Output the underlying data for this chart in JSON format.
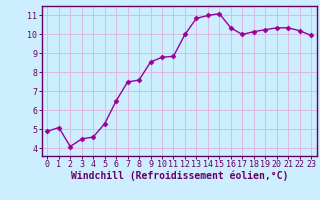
{
  "x": [
    0,
    1,
    2,
    3,
    4,
    5,
    6,
    7,
    8,
    9,
    10,
    11,
    12,
    13,
    14,
    15,
    16,
    17,
    18,
    19,
    20,
    21,
    22,
    23
  ],
  "y": [
    4.9,
    5.1,
    4.1,
    4.5,
    4.6,
    5.3,
    6.5,
    7.5,
    7.6,
    8.55,
    8.8,
    8.85,
    10.0,
    10.85,
    11.0,
    11.1,
    10.35,
    10.0,
    10.15,
    10.25,
    10.35,
    10.35,
    10.2,
    9.95
  ],
  "line_color": "#990099",
  "marker": "D",
  "marker_size": 2.5,
  "line_width": 1.0,
  "bg_color": "#cceeff",
  "grid_color": "#aaddcc",
  "axis_color": "#660066",
  "xlabel": "Windchill (Refroidissement éolien,°C)",
  "xlabel_fontsize": 7,
  "tick_fontsize": 6,
  "ylim": [
    3.6,
    11.5
  ],
  "xlim": [
    -0.5,
    23.5
  ],
  "yticks": [
    4,
    5,
    6,
    7,
    8,
    9,
    10,
    11
  ],
  "xticks": [
    0,
    1,
    2,
    3,
    4,
    5,
    6,
    7,
    8,
    9,
    10,
    11,
    12,
    13,
    14,
    15,
    16,
    17,
    18,
    19,
    20,
    21,
    22,
    23
  ]
}
